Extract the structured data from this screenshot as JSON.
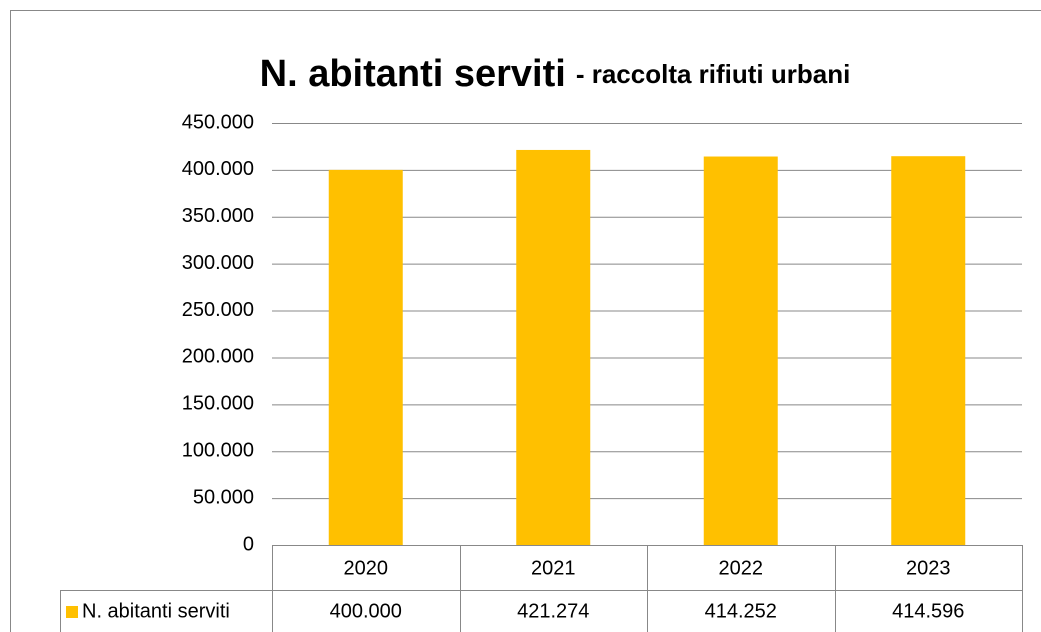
{
  "chart_data": {
    "type": "bar",
    "title": "N. abitanti serviti",
    "subtitle": "- raccolta rifiuti urbani",
    "categories": [
      "2020",
      "2021",
      "2022",
      "2023"
    ],
    "series": [
      {
        "name": "N. abitanti serviti",
        "color": "#ffc000",
        "values": [
          400000,
          421274,
          414252,
          414596
        ],
        "value_labels": [
          "400.000",
          "421.274",
          "414.252",
          "414.596"
        ]
      }
    ],
    "ylim": [
      0,
      450000
    ],
    "yticks": [
      0,
      {
        "value": 50000,
        "label": "50.000"
      },
      {
        "value": 100000,
        "label": "100.000"
      },
      {
        "value": 150000,
        "label": "150.000"
      },
      {
        "value": 200000,
        "label": "200.000"
      },
      {
        "value": 250000,
        "label": "250.000"
      },
      {
        "value": 300000,
        "label": "300.000"
      },
      {
        "value": 350000,
        "label": "350.000"
      },
      {
        "value": 400000,
        "label": "400.000"
      },
      {
        "value": 450000,
        "label": "450.000"
      }
    ],
    "grid": true
  }
}
